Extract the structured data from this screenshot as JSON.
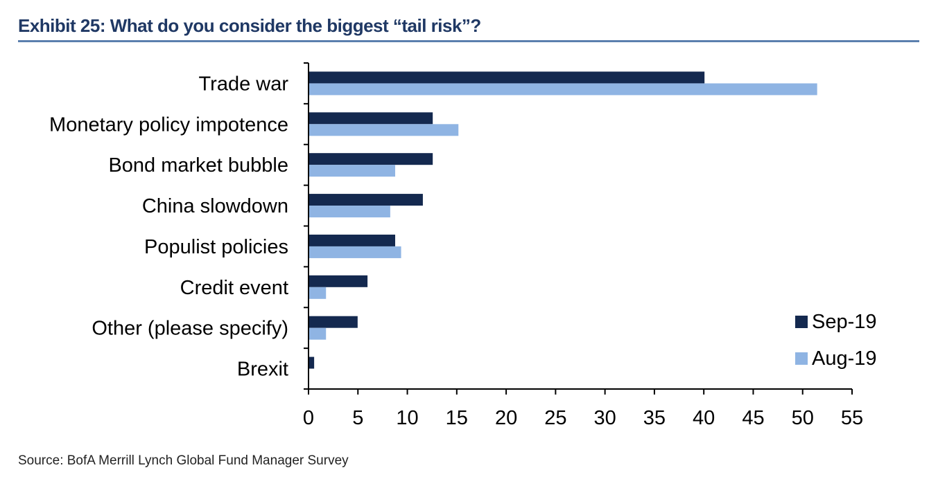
{
  "header": {
    "title": "Exhibit 25: What do you consider the biggest “tail risk”?"
  },
  "footer": {
    "source": "Source:  BofA Merrill Lynch Global Fund Manager Survey"
  },
  "colors": {
    "sep": "#14294f",
    "aug": "#8fb4e3",
    "rule": "#5b7fae",
    "title": "#1f3864"
  },
  "chart_data": {
    "type": "bar",
    "orientation": "horizontal",
    "categories": [
      "Trade war",
      "Monetary policy impotence",
      "Bond market bubble",
      "China slowdown",
      "Populist policies",
      "Credit event",
      "Other (please specify)",
      "Brexit"
    ],
    "series": [
      {
        "name": "Sep-19",
        "values": [
          40,
          12.5,
          12.5,
          11.5,
          8.7,
          5.9,
          4.9,
          0.5
        ]
      },
      {
        "name": "Aug-19",
        "values": [
          51.4,
          15.1,
          8.7,
          8.2,
          9.3,
          1.7,
          1.7,
          0
        ]
      }
    ],
    "xlim": [
      0,
      55
    ],
    "xticks": [
      0,
      5,
      10,
      15,
      20,
      25,
      30,
      35,
      40,
      45,
      50,
      55
    ],
    "legend": "bottom-right",
    "title": "",
    "xlabel": "",
    "ylabel": ""
  }
}
